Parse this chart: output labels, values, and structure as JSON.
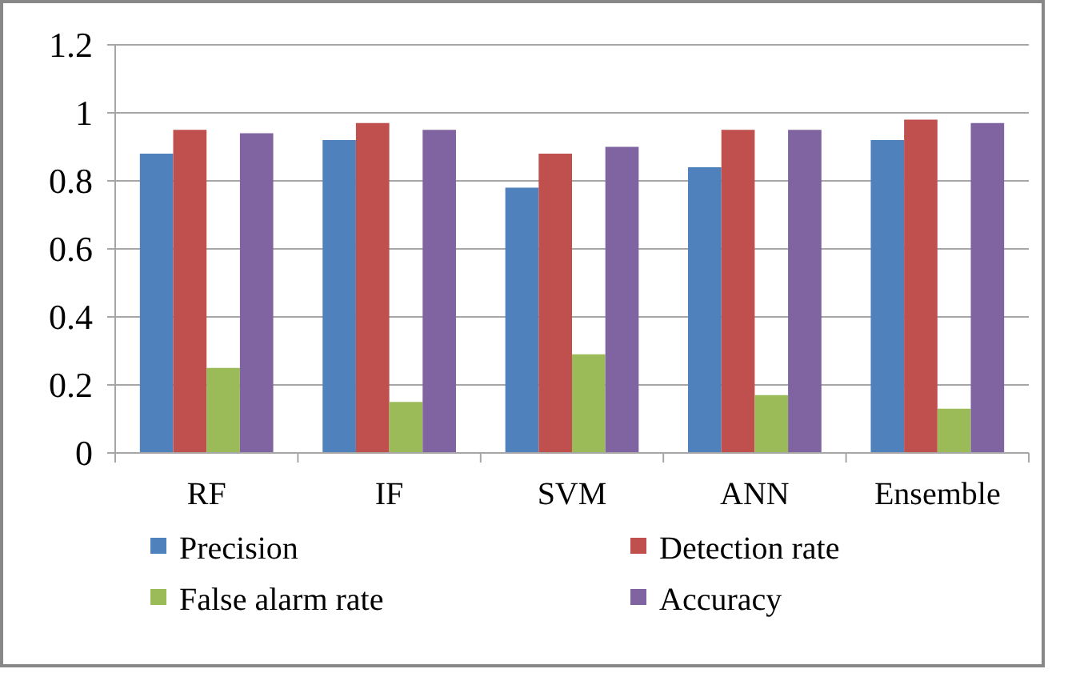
{
  "chart_data": {
    "type": "bar",
    "categories": [
      "RF",
      "IF",
      "SVM",
      "ANN",
      "Ensemble"
    ],
    "series": [
      {
        "name": "Precision",
        "color": "#4f81bd",
        "values": [
          0.88,
          0.92,
          0.78,
          0.84,
          0.92
        ]
      },
      {
        "name": "Detection rate",
        "color": "#c0504d",
        "values": [
          0.95,
          0.97,
          0.88,
          0.95,
          0.98
        ]
      },
      {
        "name": "False alarm rate",
        "color": "#9bbb59",
        "values": [
          0.25,
          0.15,
          0.29,
          0.17,
          0.13
        ]
      },
      {
        "name": "Accuracy",
        "color": "#8064a2",
        "values": [
          0.94,
          0.95,
          0.9,
          0.95,
          0.97
        ]
      }
    ],
    "ylim": [
      0,
      1.2
    ],
    "yticks": [
      0,
      0.2,
      0.4,
      0.6,
      0.8,
      1,
      1.2
    ],
    "grid": "y",
    "legend": "bottom"
  }
}
